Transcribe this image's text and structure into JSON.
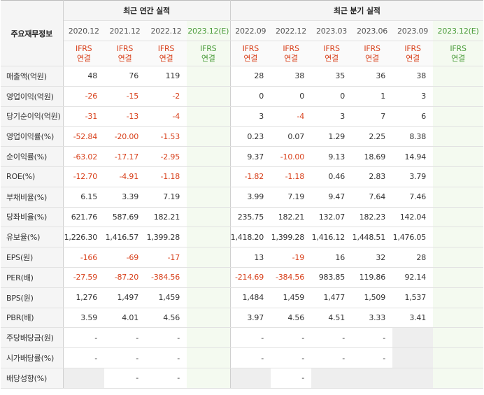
{
  "table": {
    "row_header_label": "주요재무정보",
    "annual_title": "최근 연간 실적",
    "quarterly_title": "최근 분기 실적",
    "annual_periods": [
      "2020.12",
      "2021.12",
      "2022.12",
      "2023.12(E)"
    ],
    "quarterly_periods": [
      "2022.09",
      "2022.12",
      "2023.03",
      "2023.06",
      "2023.09",
      "2023.12(E)"
    ],
    "accounting_line1": "IFRS",
    "accounting_line2": "연결",
    "rows": [
      {
        "label": "매출액(억원)",
        "annual": [
          "48",
          "76",
          "119",
          ""
        ],
        "quarterly": [
          "28",
          "38",
          "35",
          "36",
          "38",
          ""
        ]
      },
      {
        "label": "영업이익(억원)",
        "annual": [
          "-26",
          "-15",
          "-2",
          ""
        ],
        "quarterly": [
          "0",
          "0",
          "0",
          "1",
          "3",
          ""
        ]
      },
      {
        "label": "당기순이익(억원)",
        "annual": [
          "-31",
          "-13",
          "-4",
          ""
        ],
        "quarterly": [
          "3",
          "-4",
          "3",
          "7",
          "6",
          ""
        ]
      },
      {
        "label": "영업이익률(%)",
        "annual": [
          "-52.84",
          "-20.00",
          "-1.53",
          ""
        ],
        "quarterly": [
          "0.23",
          "0.07",
          "1.29",
          "2.25",
          "8.38",
          ""
        ]
      },
      {
        "label": "순이익률(%)",
        "annual": [
          "-63.02",
          "-17.17",
          "-2.95",
          ""
        ],
        "quarterly": [
          "9.37",
          "-10.00",
          "9.13",
          "18.69",
          "14.94",
          ""
        ]
      },
      {
        "label": "ROE(%)",
        "annual": [
          "-12.70",
          "-4.91",
          "-1.18",
          ""
        ],
        "quarterly": [
          "-1.82",
          "-1.18",
          "0.46",
          "2.83",
          "3.79",
          ""
        ]
      },
      {
        "label": "부채비율(%)",
        "annual": [
          "6.15",
          "3.39",
          "7.19",
          ""
        ],
        "quarterly": [
          "3.99",
          "7.19",
          "9.47",
          "7.64",
          "7.46",
          ""
        ]
      },
      {
        "label": "당좌비율(%)",
        "annual": [
          "621.76",
          "587.69",
          "182.21",
          ""
        ],
        "quarterly": [
          "235.75",
          "182.21",
          "132.07",
          "182.23",
          "142.04",
          ""
        ]
      },
      {
        "label": "유보율(%)",
        "annual": [
          "1,226.30",
          "1,416.57",
          "1,399.28",
          ""
        ],
        "quarterly": [
          "1,418.20",
          "1,399.28",
          "1,416.12",
          "1,448.51",
          "1,476.05",
          ""
        ]
      },
      {
        "label": "EPS(원)",
        "annual": [
          "-166",
          "-69",
          "-17",
          ""
        ],
        "quarterly": [
          "13",
          "-19",
          "16",
          "32",
          "28",
          ""
        ]
      },
      {
        "label": "PER(배)",
        "annual": [
          "-27.59",
          "-87.20",
          "-384.56",
          ""
        ],
        "quarterly": [
          "-214.69",
          "-384.56",
          "983.85",
          "119.86",
          "92.14",
          ""
        ]
      },
      {
        "label": "BPS(원)",
        "annual": [
          "1,276",
          "1,497",
          "1,459",
          ""
        ],
        "quarterly": [
          "1,484",
          "1,459",
          "1,477",
          "1,509",
          "1,537",
          ""
        ]
      },
      {
        "label": "PBR(배)",
        "annual": [
          "3.59",
          "4.01",
          "4.56",
          ""
        ],
        "quarterly": [
          "3.97",
          "4.56",
          "4.51",
          "3.33",
          "3.41",
          ""
        ]
      },
      {
        "label": "주당배당금(원)",
        "annual": [
          "-",
          "-",
          "-",
          ""
        ],
        "quarterly": [
          "-",
          "-",
          "-",
          "-",
          "",
          ""
        ]
      },
      {
        "label": "시가배당률(%)",
        "annual": [
          "-",
          "-",
          "-",
          ""
        ],
        "quarterly": [
          "-",
          "-",
          "-",
          "-",
          "",
          ""
        ]
      },
      {
        "label": "배당성향(%)",
        "annual": [
          "",
          "-",
          "-",
          ""
        ],
        "quarterly": [
          "",
          "-",
          "",
          "",
          "",
          ""
        ]
      }
    ]
  },
  "colors": {
    "negative": "#d8401b",
    "estimate_text": "#4a9c3a",
    "estimate_bg": "#f4faf0",
    "header_bg": "#f5f5f5",
    "empty_cell_bg": "#eeeeee"
  }
}
